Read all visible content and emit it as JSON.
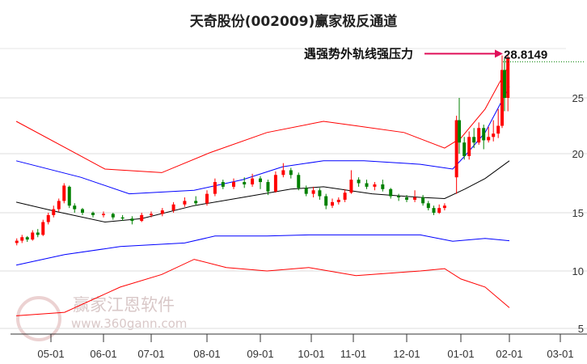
{
  "chart_data": {
    "type": "candlestick",
    "title": "天奇股份(002009)赢家极反通道",
    "x_ticks": [
      "05-01",
      "06-01",
      "07-01",
      "08-01",
      "09-01",
      "10-01",
      "11-01",
      "12-01",
      "01-01",
      "02-01",
      "03-01"
    ],
    "y_ticks": [
      5,
      10,
      15,
      20,
      25
    ],
    "colors": {
      "up": "#ff0000",
      "down": "#008000",
      "upper_outer": "#ff0000",
      "upper_inner": "#0000ff",
      "middle": "#000000",
      "lower_inner": "#0000ff",
      "lower_outer": "#ff0000",
      "annotation": "#e0105a",
      "resistance": "#008000"
    },
    "candles_fields": [
      "t_month_index",
      "open",
      "close",
      "high",
      "low"
    ],
    "candles": [
      [
        -0.65,
        12.4,
        12.6,
        12.8,
        12.2
      ],
      [
        -0.55,
        12.6,
        12.9,
        13.1,
        12.4
      ],
      [
        -0.45,
        12.9,
        12.7,
        13.0,
        12.5
      ],
      [
        -0.35,
        12.7,
        13.3,
        13.5,
        12.6
      ],
      [
        -0.25,
        13.3,
        13.1,
        13.6,
        12.9
      ],
      [
        -0.15,
        13.1,
        14.2,
        14.4,
        13.0
      ],
      [
        -0.05,
        14.2,
        14.8,
        15.0,
        14.0
      ],
      [
        0.05,
        14.8,
        15.3,
        15.6,
        14.6
      ],
      [
        0.15,
        15.3,
        16.0,
        16.2,
        15.1
      ],
      [
        0.25,
        16.0,
        17.3,
        17.5,
        15.8
      ],
      [
        0.35,
        17.2,
        15.6,
        17.3,
        15.4
      ],
      [
        0.45,
        15.6,
        15.3,
        15.8,
        15.0
      ],
      [
        0.6,
        15.3,
        15.0,
        15.4,
        14.8
      ],
      [
        0.8,
        15.0,
        14.8,
        15.1,
        14.6
      ],
      [
        1.0,
        14.8,
        14.9,
        15.1,
        14.6
      ],
      [
        1.2,
        14.9,
        14.6,
        15.0,
        14.4
      ],
      [
        1.4,
        14.6,
        14.5,
        14.8,
        14.3
      ],
      [
        1.6,
        14.5,
        14.3,
        14.7,
        14.0
      ],
      [
        1.8,
        14.3,
        14.8,
        15.0,
        14.2
      ],
      [
        2.0,
        14.8,
        14.9,
        15.1,
        14.6
      ],
      [
        2.2,
        14.9,
        15.2,
        15.4,
        14.7
      ],
      [
        2.4,
        15.2,
        15.7,
        15.9,
        15.0
      ],
      [
        2.6,
        15.7,
        16.0,
        16.3,
        15.5
      ],
      [
        2.8,
        16.0,
        15.8,
        16.4,
        15.6
      ],
      [
        3.0,
        15.8,
        16.6,
        16.9,
        15.6
      ],
      [
        3.15,
        16.6,
        17.6,
        17.9,
        16.4
      ],
      [
        3.3,
        17.6,
        17.2,
        17.8,
        17.0
      ],
      [
        3.5,
        17.2,
        17.6,
        17.9,
        17.0
      ],
      [
        3.7,
        17.6,
        17.4,
        18.0,
        17.1
      ],
      [
        3.85,
        17.4,
        17.9,
        18.3,
        17.2
      ],
      [
        4.0,
        17.9,
        17.6,
        18.1,
        17.0
      ],
      [
        4.15,
        17.6,
        16.8,
        17.8,
        16.5
      ],
      [
        4.3,
        16.8,
        18.2,
        18.5,
        16.7
      ],
      [
        4.45,
        18.2,
        18.6,
        19.2,
        18.0
      ],
      [
        4.6,
        18.6,
        18.2,
        18.8,
        17.9
      ],
      [
        4.75,
        18.2,
        17.1,
        18.4,
        16.9
      ],
      [
        4.9,
        17.1,
        16.6,
        17.3,
        16.4
      ],
      [
        5.05,
        16.6,
        16.9,
        17.2,
        16.3
      ],
      [
        5.2,
        16.9,
        16.4,
        17.1,
        16.1
      ],
      [
        5.35,
        16.4,
        15.6,
        16.6,
        15.3
      ],
      [
        5.5,
        15.6,
        15.9,
        16.2,
        15.4
      ],
      [
        5.65,
        15.9,
        16.1,
        16.3,
        15.7
      ],
      [
        5.8,
        16.1,
        16.7,
        17.0,
        15.9
      ],
      [
        5.95,
        16.7,
        17.8,
        18.6,
        16.6
      ],
      [
        6.1,
        17.8,
        17.5,
        18.0,
        17.2
      ],
      [
        6.25,
        17.5,
        17.2,
        17.8,
        17.0
      ],
      [
        6.4,
        17.2,
        17.4,
        17.6,
        16.9
      ],
      [
        6.55,
        17.4,
        17.0,
        17.8,
        16.8
      ],
      [
        6.7,
        17.0,
        16.4,
        17.1,
        16.2
      ],
      [
        6.85,
        16.4,
        16.3,
        16.6,
        16.0
      ],
      [
        7.0,
        16.3,
        16.1,
        16.5,
        15.9
      ],
      [
        7.15,
        16.1,
        16.3,
        16.9,
        15.9
      ],
      [
        7.3,
        16.3,
        15.8,
        16.5,
        15.6
      ],
      [
        7.4,
        15.8,
        15.4,
        16.0,
        15.2
      ],
      [
        7.5,
        15.4,
        15.0,
        15.6,
        14.8
      ],
      [
        7.6,
        15.0,
        15.4,
        15.7,
        14.9
      ],
      [
        7.7,
        15.4,
        15.6,
        15.8,
        15.2
      ],
      [
        7.92,
        18.0,
        23.0,
        23.4,
        16.6
      ],
      [
        7.97,
        23.0,
        21.0,
        25.0,
        20.0
      ],
      [
        8.07,
        21.0,
        19.8,
        21.5,
        19.5
      ],
      [
        8.17,
        19.8,
        21.5,
        22.0,
        19.5
      ],
      [
        8.27,
        21.5,
        21.0,
        22.3,
        20.5
      ],
      [
        8.37,
        21.0,
        22.3,
        22.8,
        20.8
      ],
      [
        8.47,
        22.3,
        21.2,
        22.6,
        20.4
      ],
      [
        8.57,
        21.2,
        21.5,
        22.4,
        21.0
      ],
      [
        8.67,
        21.5,
        21.8,
        23.0,
        21.1
      ],
      [
        8.77,
        21.8,
        22.5,
        24.0,
        21.4
      ],
      [
        8.85,
        22.5,
        27.5,
        28.8,
        22.3
      ],
      [
        8.9,
        27.5,
        25.0,
        28.5,
        23.8
      ],
      [
        8.97,
        25.0,
        28.6,
        28.8,
        23.8
      ]
    ],
    "lines": [
      {
        "name": "upper_outer",
        "points": [
          [
            -0.66,
            22.9
          ],
          [
            0.57,
            19.8
          ],
          [
            1.03,
            18.7
          ],
          [
            2.19,
            18.4
          ],
          [
            3.06,
            20.1
          ],
          [
            4.13,
            21.9
          ],
          [
            5.29,
            22.9
          ],
          [
            6.05,
            22.5
          ],
          [
            6.95,
            21.9
          ],
          [
            7.7,
            20.5
          ],
          [
            8.0,
            21.4
          ],
          [
            8.5,
            24.0
          ],
          [
            9.0,
            28.0
          ]
        ]
      },
      {
        "name": "upper_inner",
        "points": [
          [
            -0.66,
            19.4
          ],
          [
            0.57,
            18.0
          ],
          [
            1.54,
            16.6
          ],
          [
            2.77,
            16.9
          ],
          [
            3.67,
            17.8
          ],
          [
            4.44,
            18.9
          ],
          [
            5.29,
            19.4
          ],
          [
            6.2,
            19.4
          ],
          [
            7.25,
            19.1
          ],
          [
            7.85,
            18.7
          ],
          [
            8.08,
            19.8
          ],
          [
            8.5,
            21.9
          ],
          [
            9.0,
            26.0
          ]
        ]
      },
      {
        "name": "middle",
        "points": [
          [
            -0.66,
            15.9
          ],
          [
            0.1,
            15.1
          ],
          [
            1.03,
            14.2
          ],
          [
            1.8,
            14.5
          ],
          [
            2.77,
            15.6
          ],
          [
            3.67,
            16.3
          ],
          [
            4.6,
            17.0
          ],
          [
            5.29,
            17.2
          ],
          [
            6.35,
            16.6
          ],
          [
            7.25,
            16.3
          ],
          [
            7.7,
            16.2
          ],
          [
            8.08,
            17.0
          ],
          [
            8.5,
            17.9
          ],
          [
            9.0,
            19.4
          ]
        ]
      },
      {
        "name": "lower_inner",
        "points": [
          [
            -0.66,
            10.5
          ],
          [
            0.26,
            11.4
          ],
          [
            1.35,
            12.1
          ],
          [
            2.6,
            12.4
          ],
          [
            3.15,
            13.0
          ],
          [
            4.13,
            13.0
          ],
          [
            4.95,
            13.1
          ],
          [
            6.05,
            13.1
          ],
          [
            7.25,
            13.1
          ],
          [
            7.85,
            12.55
          ],
          [
            8.5,
            12.8
          ],
          [
            9.0,
            12.6
          ]
        ]
      },
      {
        "name": "lower_outer",
        "points": [
          [
            -0.66,
            6.1
          ],
          [
            0.26,
            6.4
          ],
          [
            1.35,
            8.6
          ],
          [
            2.19,
            9.7
          ],
          [
            2.77,
            11.0
          ],
          [
            3.36,
            10.3
          ],
          [
            4.13,
            10.0
          ],
          [
            4.95,
            10.3
          ],
          [
            6.05,
            9.6
          ],
          [
            7.25,
            10.0
          ],
          [
            7.7,
            10.2
          ],
          [
            8.0,
            9.3
          ],
          [
            8.5,
            8.6
          ],
          [
            9.0,
            6.8
          ]
        ]
      }
    ],
    "annotation": {
      "text": "遇强势外轨线强压力",
      "value_label": "28.8149",
      "value": 28.8149
    }
  },
  "watermark": {
    "brand": "赢家江恩软件",
    "url": "www.360gann.com",
    "seal": "江赢恩家"
  }
}
